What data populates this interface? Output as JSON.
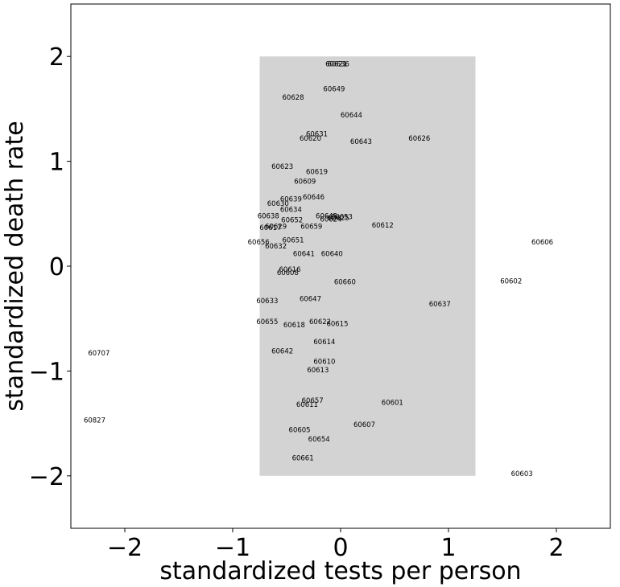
{
  "chart_data": {
    "type": "scatter",
    "xlabel": "standardized tests per person",
    "ylabel": "standardized death rate",
    "xlim": [
      -2.5,
      2.5
    ],
    "ylim": [
      -2.5,
      2.5
    ],
    "xticks": [
      -2,
      -1,
      0,
      1,
      2
    ],
    "yticks": [
      -2,
      -1,
      0,
      1,
      2
    ],
    "xtick_labels": [
      "−2",
      "−1",
      "0",
      "1",
      "2"
    ],
    "ytick_labels": [
      "−2",
      "−1",
      "0",
      "1",
      "2"
    ],
    "highlight_region": {
      "x": [
        -0.75,
        1.25
      ],
      "y": [
        -2,
        2
      ],
      "color": "#d3d3d3"
    },
    "grid": false,
    "points": [
      {
        "label": "60621",
        "x": -0.04,
        "y": 1.93
      },
      {
        "label": "60636",
        "x": -0.02,
        "y": 1.93
      },
      {
        "label": "60649",
        "x": -0.06,
        "y": 1.69
      },
      {
        "label": "60628",
        "x": -0.44,
        "y": 1.61
      },
      {
        "label": "60644",
        "x": 0.1,
        "y": 1.44
      },
      {
        "label": "60631",
        "x": -0.22,
        "y": 1.26
      },
      {
        "label": "60620",
        "x": -0.28,
        "y": 1.22
      },
      {
        "label": "60643",
        "x": 0.19,
        "y": 1.19
      },
      {
        "label": "60626",
        "x": 0.73,
        "y": 1.22
      },
      {
        "label": "60623",
        "x": -0.54,
        "y": 0.95
      },
      {
        "label": "60619",
        "x": -0.22,
        "y": 0.9
      },
      {
        "label": "60609",
        "x": -0.33,
        "y": 0.81
      },
      {
        "label": "60639",
        "x": -0.46,
        "y": 0.64
      },
      {
        "label": "60646",
        "x": -0.25,
        "y": 0.66
      },
      {
        "label": "60630",
        "x": -0.58,
        "y": 0.6
      },
      {
        "label": "60634",
        "x": -0.46,
        "y": 0.54
      },
      {
        "label": "60638",
        "x": -0.67,
        "y": 0.48
      },
      {
        "label": "60652",
        "x": -0.45,
        "y": 0.44
      },
      {
        "label": "60645",
        "x": -0.13,
        "y": 0.48
      },
      {
        "label": "60624",
        "x": -0.09,
        "y": 0.45
      },
      {
        "label": "60625",
        "x": -0.02,
        "y": 0.46
      },
      {
        "label": "60653",
        "x": 0.01,
        "y": 0.47
      },
      {
        "label": "60629",
        "x": -0.6,
        "y": 0.38
      },
      {
        "label": "60617",
        "x": -0.65,
        "y": 0.37
      },
      {
        "label": "60659",
        "x": -0.27,
        "y": 0.38
      },
      {
        "label": "60612",
        "x": 0.39,
        "y": 0.39
      },
      {
        "label": "60656",
        "x": -0.76,
        "y": 0.23
      },
      {
        "label": "60651",
        "x": -0.44,
        "y": 0.25
      },
      {
        "label": "60632",
        "x": -0.6,
        "y": 0.19
      },
      {
        "label": "60641",
        "x": -0.34,
        "y": 0.12
      },
      {
        "label": "60640",
        "x": -0.08,
        "y": 0.12
      },
      {
        "label": "60616",
        "x": -0.47,
        "y": -0.03
      },
      {
        "label": "60608",
        "x": -0.49,
        "y": -0.06
      },
      {
        "label": "60660",
        "x": 0.04,
        "y": -0.15
      },
      {
        "label": "60606",
        "x": 1.87,
        "y": 0.23
      },
      {
        "label": "60602",
        "x": 1.58,
        "y": -0.14
      },
      {
        "label": "60637",
        "x": 0.92,
        "y": -0.36
      },
      {
        "label": "60633",
        "x": -0.68,
        "y": -0.33
      },
      {
        "label": "60647",
        "x": -0.28,
        "y": -0.31
      },
      {
        "label": "60655",
        "x": -0.68,
        "y": -0.53
      },
      {
        "label": "60618",
        "x": -0.43,
        "y": -0.56
      },
      {
        "label": "60622",
        "x": -0.19,
        "y": -0.53
      },
      {
        "label": "60615",
        "x": -0.03,
        "y": -0.55
      },
      {
        "label": "60614",
        "x": -0.15,
        "y": -0.72
      },
      {
        "label": "60642",
        "x": -0.54,
        "y": -0.81
      },
      {
        "label": "60610",
        "x": -0.15,
        "y": -0.91
      },
      {
        "label": "60613",
        "x": -0.21,
        "y": -0.99
      },
      {
        "label": "60707",
        "x": -2.24,
        "y": -0.83
      },
      {
        "label": "60657",
        "x": -0.26,
        "y": -1.28
      },
      {
        "label": "60611",
        "x": -0.31,
        "y": -1.32
      },
      {
        "label": "60601",
        "x": 0.48,
        "y": -1.3
      },
      {
        "label": "60607",
        "x": 0.22,
        "y": -1.51
      },
      {
        "label": "60605",
        "x": -0.38,
        "y": -1.56
      },
      {
        "label": "60654",
        "x": -0.2,
        "y": -1.65
      },
      {
        "label": "60827",
        "x": -2.28,
        "y": -1.47
      },
      {
        "label": "60661",
        "x": -0.35,
        "y": -1.83
      },
      {
        "label": "60603",
        "x": 1.68,
        "y": -1.98
      }
    ]
  }
}
